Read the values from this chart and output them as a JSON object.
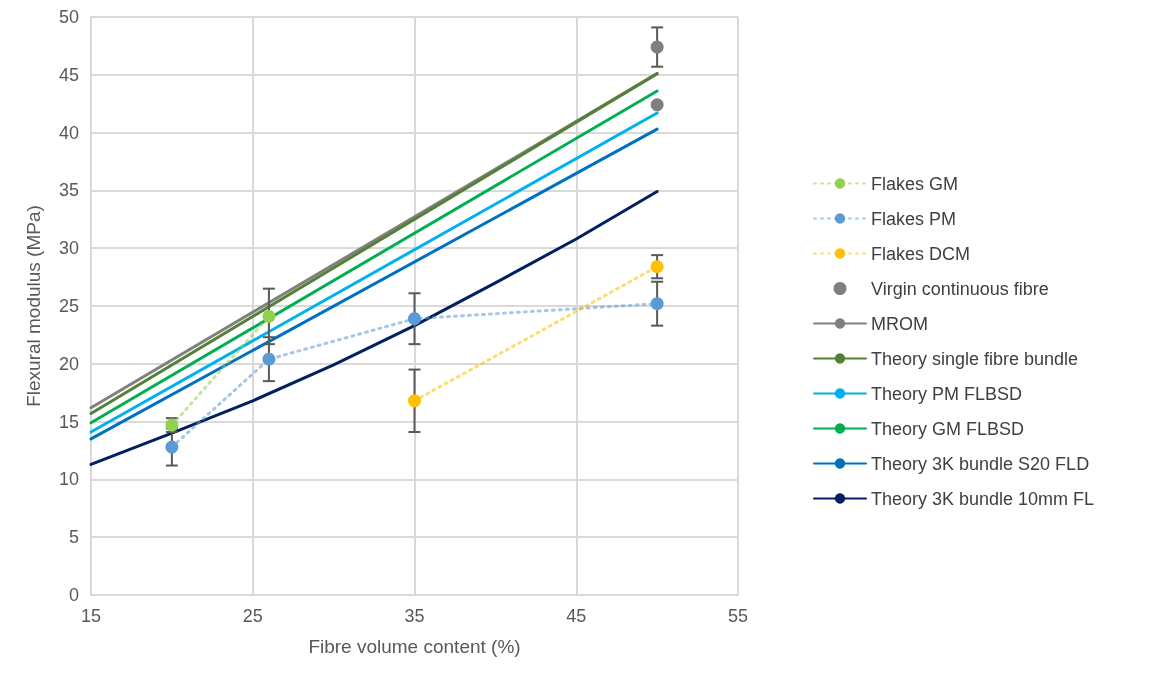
{
  "chart_data": {
    "type": "line",
    "xlabel": "Fibre volume content (%)",
    "ylabel": "Flexural modulus (MPa)",
    "xlim": [
      15,
      55
    ],
    "xticks": [
      15,
      25,
      35,
      45,
      55
    ],
    "ylim": [
      0,
      50
    ],
    "yticks": [
      0,
      5,
      10,
      15,
      20,
      25,
      30,
      35,
      40,
      45,
      50
    ],
    "grid": true,
    "legend": "right",
    "series": [
      {
        "name": "Flakes GM",
        "color": "#92d050",
        "x": [
          20,
          26
        ],
        "values": [
          14.7,
          24.1
        ],
        "errors": [
          0.6,
          2.4
        ],
        "marker": "circle",
        "line_style": "dotted"
      },
      {
        "name": "Flakes PM",
        "color": "#5b9bd5",
        "x": [
          20,
          26,
          35,
          50
        ],
        "values": [
          12.8,
          20.4,
          23.9,
          25.2
        ],
        "errors": [
          1.6,
          1.9,
          2.2,
          1.9
        ],
        "marker": "circle",
        "line_style": "dotted"
      },
      {
        "name": "Flakes DCM",
        "color": "#ffc000",
        "x": [
          35,
          50
        ],
        "values": [
          16.8,
          28.4
        ],
        "errors": [
          2.7,
          1.0
        ],
        "marker": "circle",
        "line_style": "dotted"
      },
      {
        "name": "Virgin continuous fibre",
        "type": "scatter",
        "color": "#7f7f7f",
        "x": [
          50,
          50
        ],
        "values": [
          47.4,
          42.4
        ],
        "errors": [
          1.7,
          null
        ],
        "marker": "circle"
      },
      {
        "name": "MROM",
        "color": "#808080",
        "x": [
          15,
          50
        ],
        "values": [
          16.2,
          45.1
        ],
        "marker": "none",
        "line_style": "solid"
      },
      {
        "name": "Theory single fibre bundle",
        "color": "#548235",
        "x": [
          15,
          50
        ],
        "values": [
          15.7,
          45.1
        ],
        "marker": "none",
        "line_style": "solid"
      },
      {
        "name": "Theory PM FLBSD",
        "color": "#00b0f0",
        "x": [
          15,
          50
        ],
        "values": [
          14.1,
          41.7
        ],
        "marker": "none",
        "line_style": "solid"
      },
      {
        "name": "Theory GM FLBSD",
        "color": "#00b050",
        "x": [
          15,
          50
        ],
        "values": [
          14.9,
          43.6
        ],
        "marker": "none",
        "line_style": "solid"
      },
      {
        "name": "Theory 3K bundle S20 FLD",
        "color": "#0070c0",
        "x": [
          15,
          50
        ],
        "values": [
          13.5,
          40.3
        ],
        "marker": "none",
        "line_style": "solid"
      },
      {
        "name": "Theory 3K bundle 10mm FL",
        "color": "#002060",
        "x": [
          15,
          20,
          25,
          30,
          35,
          40,
          45,
          50
        ],
        "values": [
          11.3,
          14.0,
          16.8,
          19.9,
          23.3,
          27.0,
          30.8,
          34.9
        ],
        "marker": "none",
        "line_style": "solid"
      }
    ]
  }
}
